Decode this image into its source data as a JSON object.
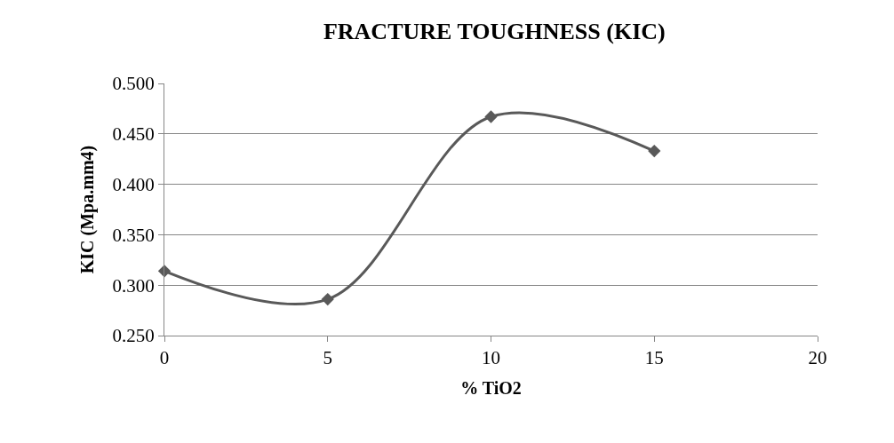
{
  "chart_data": {
    "type": "line",
    "title": "FRACTURE TOUGHNESS (KIC)",
    "xlabel": "% TiO2",
    "ylabel": "KIC (Mpa.mm4)",
    "x": [
      0,
      5,
      10,
      15
    ],
    "series": [
      {
        "color": "#595959",
        "values": [
          0.314,
          0.286,
          0.467,
          0.433
        ]
      }
    ],
    "xlim": [
      0,
      20
    ],
    "xticks": [
      0,
      5,
      10,
      15,
      20
    ],
    "ylim": [
      0.25,
      0.5
    ],
    "yticks": [
      {
        "value": 0.25,
        "label": "0.250"
      },
      {
        "value": 0.3,
        "label": "0.300"
      },
      {
        "value": 0.35,
        "label": "0.350"
      },
      {
        "value": 0.4,
        "label": "0.400"
      },
      {
        "value": 0.45,
        "label": "0.450"
      },
      {
        "value": 0.5,
        "label": "0.500"
      }
    ],
    "grid": "y",
    "legend": false,
    "marker": "diamond",
    "line_style": "solid"
  }
}
